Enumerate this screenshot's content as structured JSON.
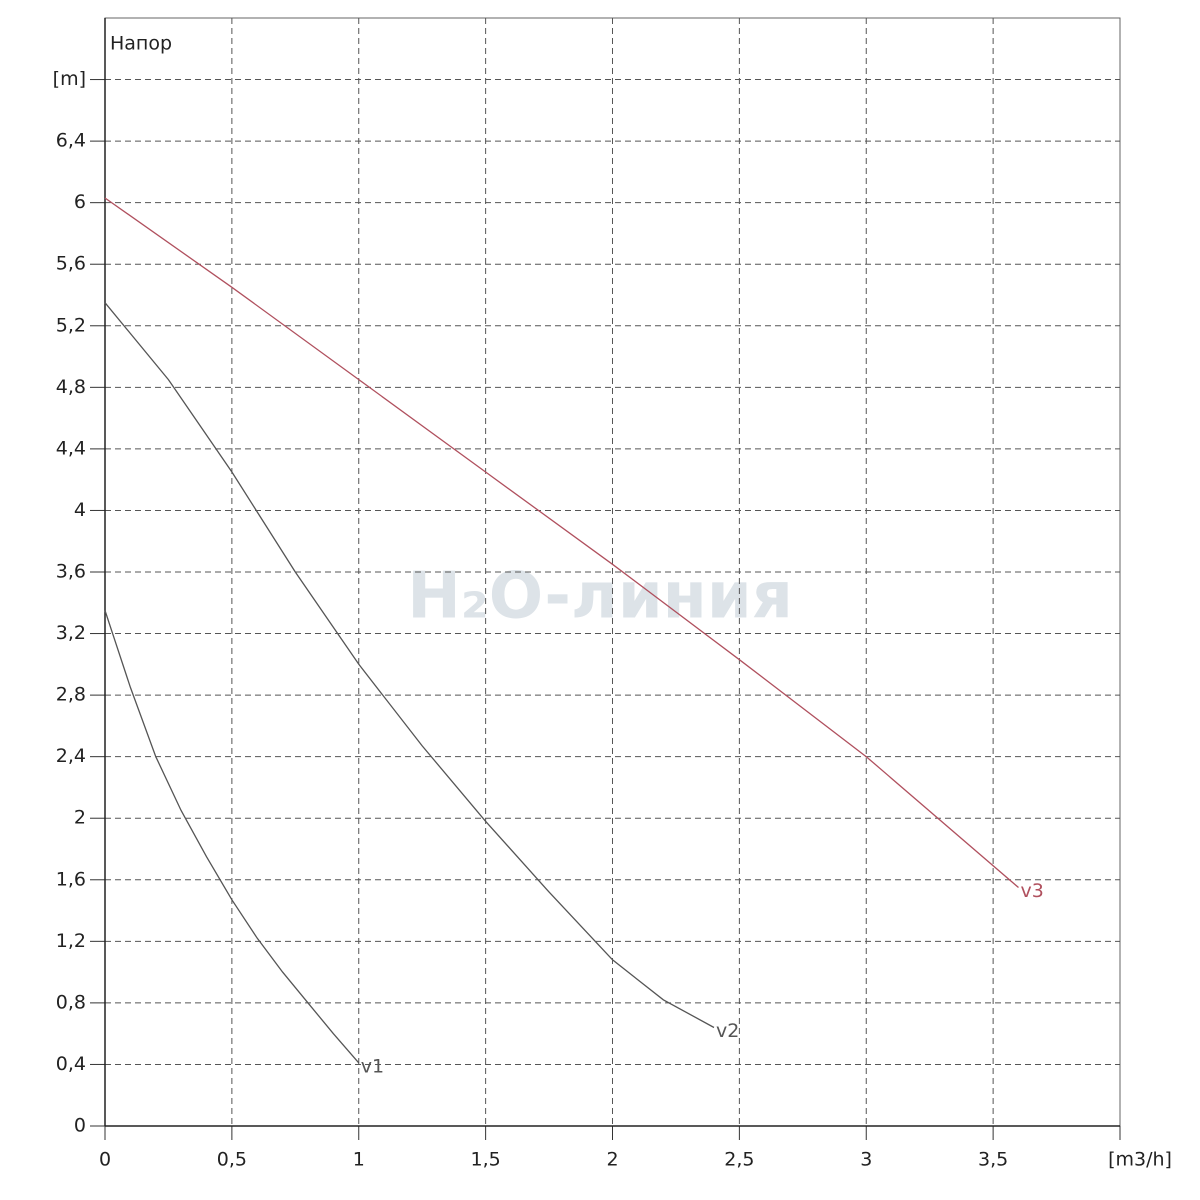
{
  "chart_data": {
    "type": "line",
    "y_label": "Напор",
    "watermark": "H₂O-линия",
    "xlim": [
      0,
      4
    ],
    "xticks": [
      0,
      {
        "value": 0.5,
        "label": "0,5"
      },
      1,
      {
        "value": 1.5,
        "label": "1,5"
      },
      2,
      {
        "value": 2.5,
        "label": "2,5"
      },
      3,
      {
        "value": 3.5,
        "label": "3,5"
      },
      {
        "value": 4,
        "label": "[m3/h]"
      }
    ],
    "ylim": [
      0,
      7.2
    ],
    "yticks": [
      0,
      {
        "value": 0.4,
        "label": "0,4"
      },
      {
        "value": 0.8,
        "label": "0,8"
      },
      {
        "value": 1.2,
        "label": "1,2"
      },
      {
        "value": 1.6,
        "label": "1,6"
      },
      2,
      {
        "value": 2.4,
        "label": "2,4"
      },
      {
        "value": 2.8,
        "label": "2,8"
      },
      {
        "value": 3.2,
        "label": "3,2"
      },
      {
        "value": 3.6,
        "label": "3,6"
      },
      4,
      {
        "value": 4.4,
        "label": "4,4"
      },
      {
        "value": 4.8,
        "label": "4,8"
      },
      {
        "value": 5.2,
        "label": "5,2"
      },
      {
        "value": 5.6,
        "label": "5,6"
      },
      6,
      {
        "value": 6.4,
        "label": "6,4"
      },
      {
        "value": 6.8,
        "label": "[m]"
      }
    ],
    "grid": true,
    "series": [
      {
        "name": "v1",
        "color": "#555555",
        "x": [
          0,
          0.1,
          0.2,
          0.3,
          0.4,
          0.5,
          0.6,
          0.7,
          0.8,
          0.9,
          1.0
        ],
        "values": [
          3.35,
          2.85,
          2.4,
          2.05,
          1.75,
          1.47,
          1.22,
          1.0,
          0.8,
          0.6,
          0.41
        ]
      },
      {
        "name": "v2",
        "color": "#555555",
        "x": [
          0,
          0.25,
          0.5,
          0.75,
          1,
          1.25,
          1.5,
          1.75,
          2,
          2.2,
          2.4
        ],
        "values": [
          5.35,
          4.85,
          4.25,
          3.6,
          3.0,
          2.47,
          1.98,
          1.52,
          1.08,
          0.82,
          0.64
        ]
      },
      {
        "name": "v3",
        "color": "#b0505e",
        "x": [
          0,
          0.5,
          1,
          1.5,
          2,
          2.5,
          3,
          3.6
        ],
        "values": [
          6.03,
          5.45,
          4.85,
          4.25,
          3.65,
          3.03,
          2.4,
          1.55
        ]
      }
    ]
  }
}
